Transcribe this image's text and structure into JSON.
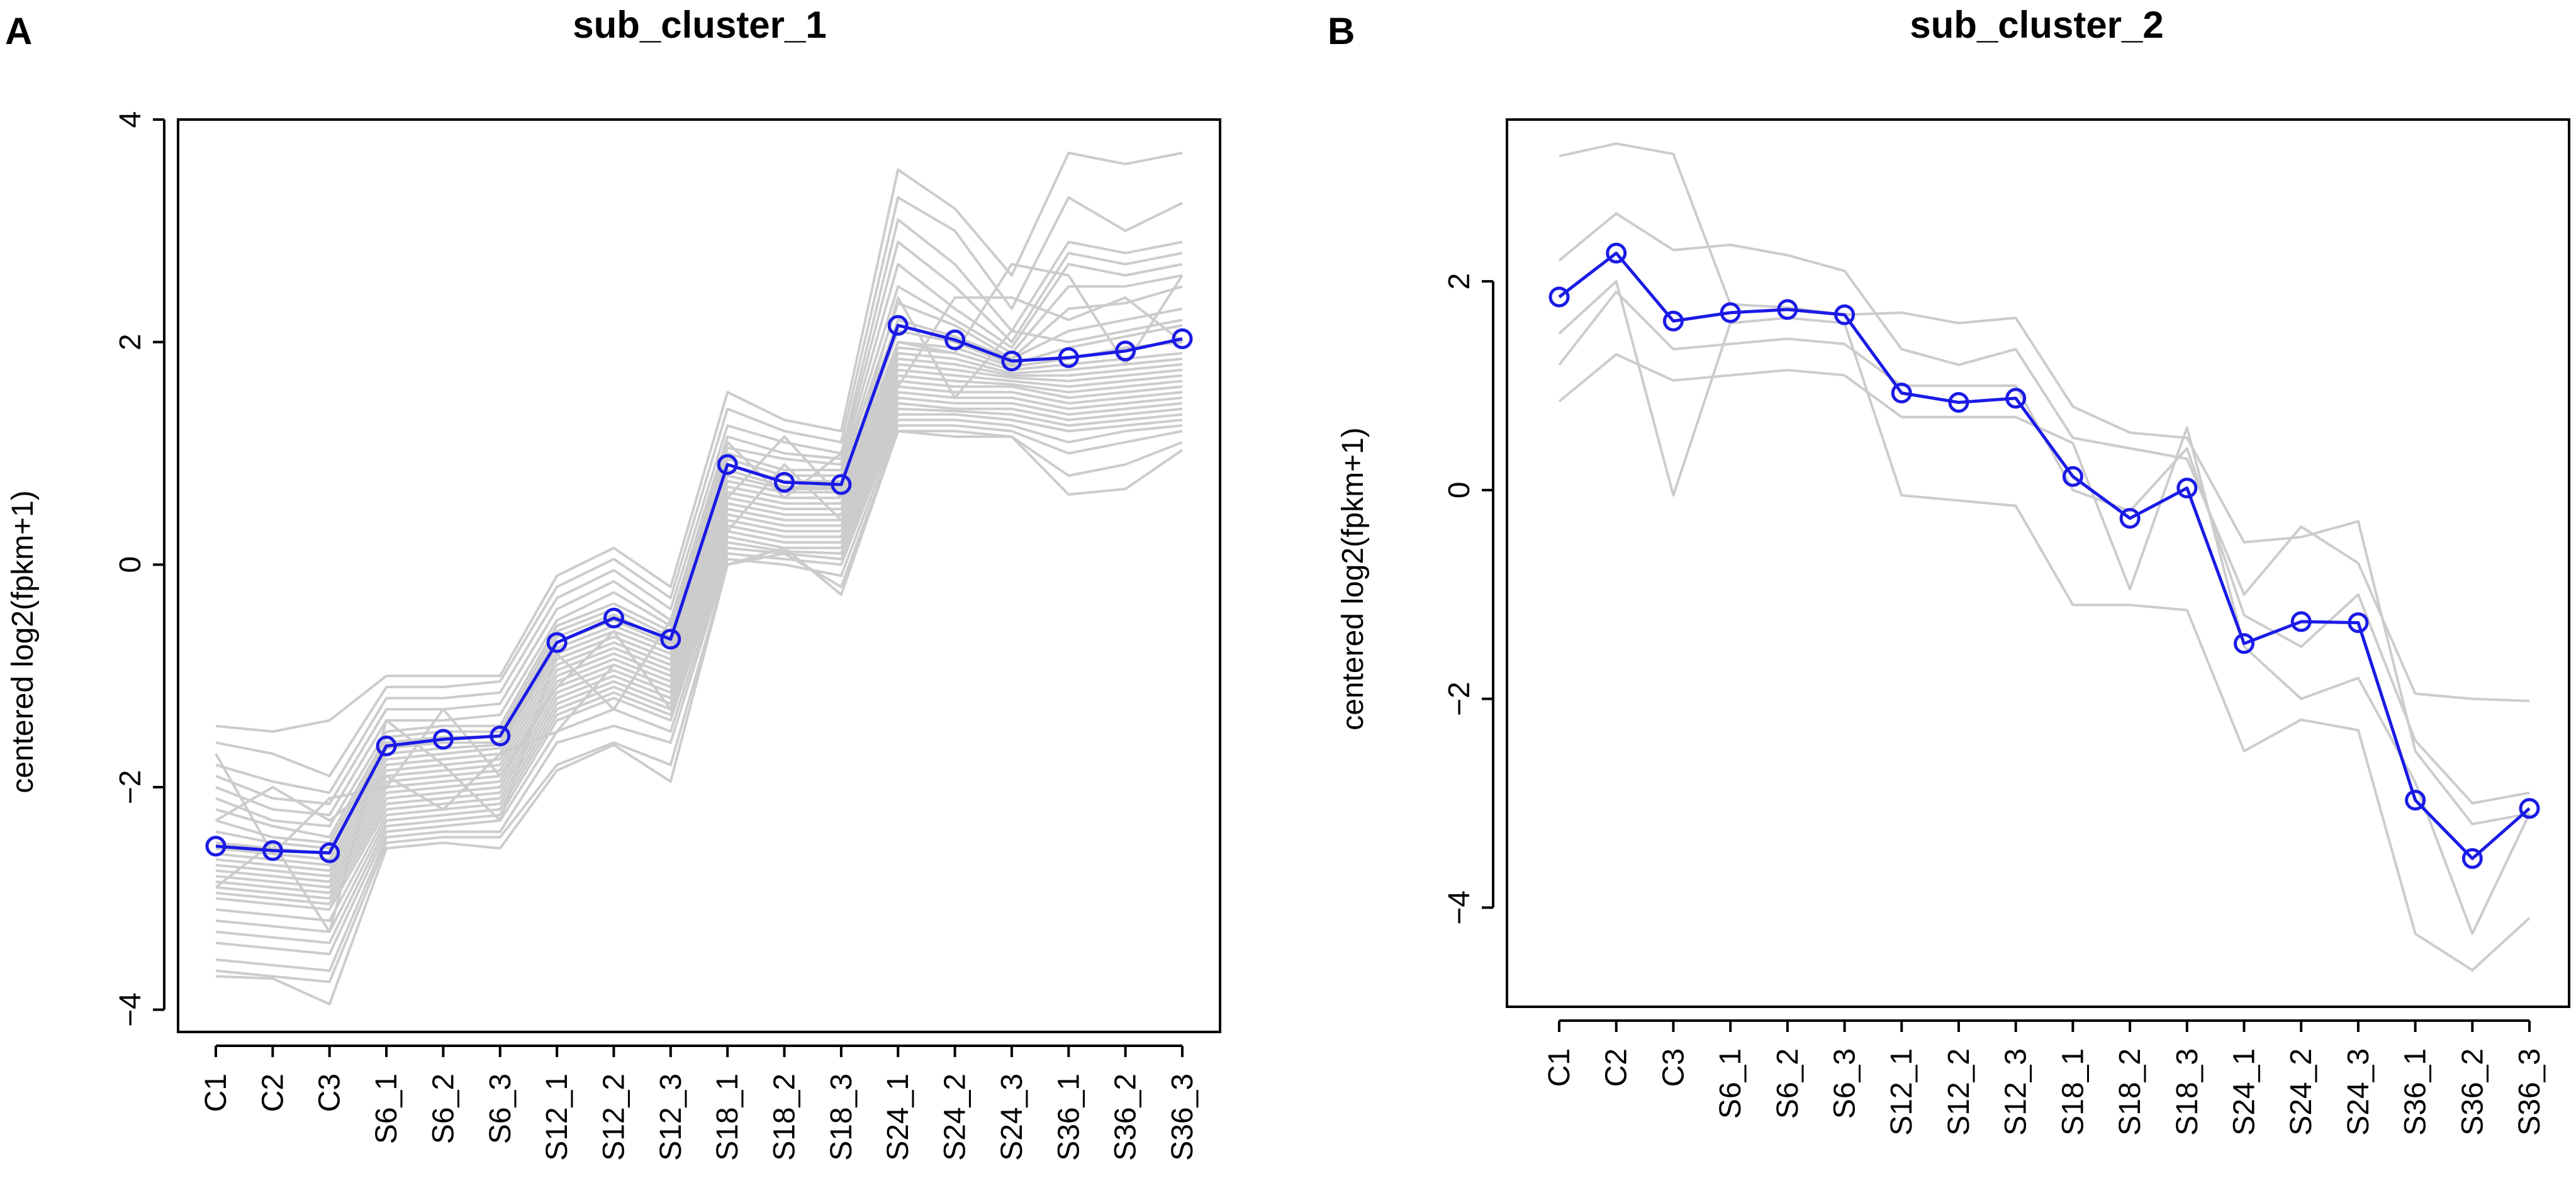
{
  "chart_data": [
    {
      "type": "line",
      "panel": "A",
      "title": "sub_cluster_1",
      "xlabel": "",
      "ylabel": "centered log2(fpkm+1)",
      "categories": [
        "C1",
        "C2",
        "C3",
        "S6_1",
        "S6_2",
        "S6_3",
        "S12_1",
        "S12_2",
        "S12_3",
        "S18_1",
        "S18_2",
        "S18_3",
        "S24_1",
        "S24_2",
        "S24_3",
        "S36_1",
        "S36_2",
        "S36_3"
      ],
      "ylim": [
        -4.2,
        4.0
      ],
      "yticks": [
        -4,
        -2,
        0,
        2,
        4
      ],
      "ytick_labels": [
        "−4",
        "−2",
        "0",
        "2",
        "4"
      ],
      "mean_color": "#1a1ae6",
      "background_color": "#cccccc",
      "mean": {
        "name": "mean",
        "values": [
          -2.53,
          -2.57,
          -2.59,
          -1.63,
          -1.57,
          -1.54,
          -0.7,
          -0.48,
          -0.67,
          0.9,
          0.74,
          0.72,
          2.15,
          2.02,
          1.83,
          1.86,
          1.92,
          2.03
        ]
      },
      "background_series": [
        {
          "values": [
            -1.45,
            -1.5,
            -1.4,
            -1.0,
            -1.0,
            -1.0,
            -0.1,
            0.15,
            -0.2,
            1.55,
            1.3,
            1.2,
            3.55,
            3.2,
            2.6,
            3.7,
            3.6,
            3.7
          ]
        },
        {
          "values": [
            -1.6,
            -1.7,
            -1.9,
            -1.1,
            -1.1,
            -1.05,
            -0.2,
            0.05,
            -0.3,
            1.4,
            1.2,
            1.1,
            3.3,
            3.0,
            2.3,
            3.3,
            3.0,
            3.25
          ]
        },
        {
          "values": [
            -1.8,
            -1.95,
            -2.05,
            -1.2,
            -1.2,
            -1.15,
            -0.3,
            -0.05,
            -0.4,
            1.25,
            1.1,
            1.0,
            3.1,
            2.7,
            2.1,
            2.9,
            2.8,
            2.9
          ]
        },
        {
          "values": [
            -1.9,
            -2.1,
            -2.15,
            -1.3,
            -1.3,
            -1.25,
            -0.4,
            -0.15,
            -0.5,
            1.15,
            1.0,
            0.95,
            2.9,
            2.5,
            2.0,
            2.8,
            2.7,
            2.8
          ]
        },
        {
          "values": [
            -2.0,
            -2.2,
            -2.25,
            -1.4,
            -1.4,
            -1.35,
            -0.5,
            -0.25,
            -0.55,
            1.05,
            0.95,
            0.9,
            2.7,
            2.3,
            1.95,
            2.7,
            2.6,
            2.7
          ]
        },
        {
          "values": [
            -2.1,
            -2.3,
            -2.35,
            -1.5,
            -1.45,
            -1.45,
            -0.55,
            -0.35,
            -0.6,
            1.0,
            0.85,
            0.85,
            2.5,
            2.2,
            1.9,
            2.5,
            2.5,
            2.6
          ]
        },
        {
          "values": [
            -2.2,
            -2.35,
            -2.45,
            -1.55,
            -1.5,
            -1.5,
            -0.6,
            -0.4,
            -0.65,
            0.95,
            0.8,
            0.8,
            2.35,
            2.15,
            1.85,
            2.3,
            2.35,
            2.5
          ]
        },
        {
          "values": [
            -2.3,
            -2.45,
            -2.5,
            -1.6,
            -1.55,
            -1.55,
            -0.65,
            -0.45,
            -0.7,
            0.9,
            0.75,
            0.75,
            2.2,
            2.05,
            1.85,
            2.1,
            2.2,
            2.3
          ]
        },
        {
          "values": [
            -2.4,
            -2.5,
            -2.55,
            -1.65,
            -1.6,
            -1.6,
            -0.7,
            -0.5,
            -0.72,
            0.85,
            0.7,
            0.7,
            2.1,
            2.0,
            1.8,
            1.95,
            2.05,
            2.15
          ]
        },
        {
          "values": [
            -2.5,
            -2.55,
            -2.6,
            -1.7,
            -1.65,
            -1.62,
            -0.75,
            -0.55,
            -0.75,
            0.8,
            0.68,
            0.68,
            2.0,
            1.95,
            1.78,
            1.85,
            1.95,
            2.0
          ]
        },
        {
          "values": [
            -2.55,
            -2.6,
            -2.65,
            -1.75,
            -1.7,
            -1.65,
            -0.8,
            -0.6,
            -0.8,
            0.75,
            0.65,
            0.65,
            1.95,
            1.9,
            1.75,
            1.8,
            1.85,
            1.9
          ]
        },
        {
          "values": [
            -2.6,
            -2.65,
            -2.7,
            -1.8,
            -1.75,
            -1.7,
            -0.85,
            -0.65,
            -0.85,
            0.7,
            0.6,
            0.6,
            1.9,
            1.85,
            1.72,
            1.75,
            1.8,
            1.85
          ]
        },
        {
          "values": [
            -2.65,
            -2.7,
            -2.75,
            -1.85,
            -1.8,
            -1.75,
            -0.9,
            -0.7,
            -0.9,
            0.65,
            0.55,
            0.55,
            1.85,
            1.8,
            1.7,
            1.7,
            1.75,
            1.8
          ]
        },
        {
          "values": [
            -2.7,
            -2.75,
            -2.8,
            -1.9,
            -1.85,
            -1.8,
            -0.95,
            -0.75,
            -0.95,
            0.6,
            0.5,
            0.5,
            1.8,
            1.75,
            1.68,
            1.65,
            1.7,
            1.75
          ]
        },
        {
          "values": [
            -2.75,
            -2.8,
            -2.85,
            -1.95,
            -1.9,
            -1.85,
            -1.0,
            -0.8,
            -1.0,
            0.55,
            0.45,
            0.45,
            1.75,
            1.7,
            1.65,
            1.6,
            1.65,
            1.7
          ]
        },
        {
          "values": [
            -2.8,
            -2.85,
            -2.9,
            -2.0,
            -1.95,
            -1.9,
            -1.05,
            -0.85,
            -1.05,
            0.5,
            0.4,
            0.4,
            1.7,
            1.65,
            1.62,
            1.55,
            1.6,
            1.65
          ]
        },
        {
          "values": [
            -2.85,
            -2.9,
            -2.95,
            -2.05,
            -2.0,
            -1.95,
            -1.1,
            -0.9,
            -1.1,
            0.45,
            0.35,
            0.35,
            1.65,
            1.6,
            1.6,
            1.5,
            1.55,
            1.6
          ]
        },
        {
          "values": [
            -2.9,
            -2.95,
            -3.0,
            -2.1,
            -2.05,
            -2.0,
            -1.15,
            -0.95,
            -1.15,
            0.4,
            0.3,
            0.3,
            1.6,
            1.55,
            1.55,
            1.45,
            1.5,
            1.55
          ]
        },
        {
          "values": [
            -2.95,
            -3.0,
            -3.05,
            -2.15,
            -2.1,
            -2.05,
            -1.2,
            -1.0,
            -1.2,
            0.35,
            0.25,
            0.25,
            1.55,
            1.5,
            1.5,
            1.4,
            1.45,
            1.5
          ]
        },
        {
          "values": [
            -3.0,
            -3.05,
            -3.1,
            -2.2,
            -2.15,
            -2.1,
            -1.25,
            -1.05,
            -1.25,
            0.3,
            0.2,
            0.2,
            1.5,
            1.45,
            1.45,
            1.35,
            1.4,
            1.45
          ]
        },
        {
          "values": [
            -3.1,
            -3.15,
            -3.2,
            -2.25,
            -2.2,
            -2.15,
            -1.3,
            -1.1,
            -1.3,
            0.25,
            0.15,
            0.15,
            1.45,
            1.4,
            1.4,
            1.3,
            1.35,
            1.4
          ]
        },
        {
          "values": [
            -3.2,
            -3.25,
            -3.3,
            -2.3,
            -2.25,
            -2.2,
            -1.35,
            -1.15,
            -1.35,
            0.2,
            0.12,
            0.1,
            1.4,
            1.38,
            1.35,
            1.25,
            1.3,
            1.35
          ]
        },
        {
          "values": [
            -3.3,
            -3.35,
            -3.4,
            -2.35,
            -2.3,
            -2.25,
            -1.4,
            -1.2,
            -1.4,
            0.15,
            0.1,
            0.05,
            1.35,
            1.35,
            1.3,
            1.2,
            1.25,
            1.3
          ]
        },
        {
          "values": [
            -3.4,
            -3.45,
            -3.5,
            -2.4,
            -2.35,
            -2.3,
            -1.5,
            -1.3,
            -1.5,
            0.1,
            0.05,
            0.0,
            1.3,
            1.3,
            1.25,
            1.1,
            1.2,
            1.25
          ]
        },
        {
          "values": [
            -3.55,
            -3.6,
            -3.65,
            -2.45,
            -2.4,
            -2.4,
            -1.6,
            -1.45,
            -1.6,
            0.05,
            0.0,
            -0.1,
            1.25,
            1.25,
            1.2,
            1.0,
            1.1,
            1.2
          ]
        },
        {
          "values": [
            -3.65,
            -3.7,
            -3.75,
            -2.5,
            -2.45,
            -2.45,
            -1.8,
            -1.6,
            -1.8,
            0.0,
            0.1,
            -0.2,
            1.2,
            1.2,
            1.15,
            0.8,
            0.9,
            1.1
          ]
        },
        {
          "values": [
            -3.7,
            -3.72,
            -3.95,
            -2.55,
            -2.5,
            -2.55,
            -1.85,
            -1.62,
            -1.95,
            0.0,
            0.15,
            -0.27,
            1.2,
            1.15,
            1.15,
            0.63,
            0.68,
            1.03
          ]
        },
        {
          "values": [
            -2.3,
            -2.0,
            -2.3,
            -1.9,
            -2.2,
            -1.7,
            -1.5,
            -0.9,
            -1.1,
            0.6,
            1.15,
            0.6,
            2.4,
            1.5,
            2.1,
            2.0,
            2.1,
            2.2
          ]
        },
        {
          "values": [
            -2.9,
            -2.5,
            -3.3,
            -1.4,
            -1.8,
            -2.3,
            -0.8,
            -1.3,
            -0.5,
            1.1,
            0.6,
            1.0,
            1.6,
            2.4,
            2.4,
            2.2,
            2.4,
            2.0
          ]
        },
        {
          "values": [
            -1.7,
            -2.6,
            -2.1,
            -2.0,
            -1.3,
            -1.9,
            -1.1,
            -0.6,
            -1.3,
            0.3,
            0.9,
            0.4,
            2.0,
            1.9,
            2.7,
            2.6,
            1.8,
            2.6
          ]
        }
      ]
    },
    {
      "type": "line",
      "panel": "B",
      "title": "sub_cluster_2",
      "xlabel": "",
      "ylabel": "centered log2(fpkm+1)",
      "categories": [
        "C1",
        "C2",
        "C3",
        "S6_1",
        "S6_2",
        "S6_3",
        "S12_1",
        "S12_2",
        "S12_3",
        "S18_1",
        "S18_2",
        "S18_3",
        "S24_1",
        "S24_2",
        "S24_3",
        "S36_1",
        "S36_2",
        "S36_3"
      ],
      "ylim": [
        -4.95,
        3.55
      ],
      "yticks": [
        -4,
        -2,
        0,
        2
      ],
      "ytick_labels": [
        "−4",
        "−2",
        "0",
        "2"
      ],
      "mean_color": "#1a1ae6",
      "background_color": "#cccccc",
      "mean": {
        "name": "mean",
        "values": [
          1.85,
          2.27,
          1.62,
          1.7,
          1.73,
          1.68,
          0.93,
          0.84,
          0.88,
          0.13,
          -0.27,
          0.02,
          -1.47,
          -1.26,
          -1.27,
          -2.97,
          -3.53,
          -3.05
        ]
      },
      "background_series": [
        {
          "values": [
            3.2,
            3.32,
            3.22,
            1.78,
            1.75,
            1.68,
            1.7,
            1.6,
            1.65,
            0.8,
            0.55,
            0.5,
            -0.5,
            -0.45,
            -0.3,
            -2.5,
            -3.2,
            -3.1
          ]
        },
        {
          "values": [
            2.2,
            2.65,
            2.3,
            2.35,
            2.25,
            2.1,
            1.35,
            1.2,
            1.35,
            0.5,
            0.4,
            0.3,
            -1.0,
            -0.35,
            -0.7,
            -1.95,
            -2.0,
            -2.02
          ]
        },
        {
          "values": [
            1.5,
            2.0,
            -0.05,
            1.6,
            1.65,
            1.6,
            -0.05,
            -0.1,
            -0.15,
            -1.1,
            -1.1,
            -1.15,
            -2.5,
            -2.2,
            -2.3,
            -4.25,
            -4.6,
            -4.1
          ]
        },
        {
          "values": [
            0.85,
            1.3,
            1.05,
            1.1,
            1.15,
            1.1,
            0.7,
            0.7,
            0.7,
            0.45,
            -0.95,
            0.6,
            -1.5,
            -2.0,
            -1.8,
            -2.8,
            -4.25,
            -3.1
          ]
        },
        {
          "values": [
            1.2,
            1.9,
            1.35,
            1.4,
            1.45,
            1.4,
            1.0,
            1.0,
            1.0,
            0.0,
            -0.2,
            0.4,
            -1.2,
            -1.5,
            -1.0,
            -2.4,
            -3.0,
            -2.9
          ]
        }
      ]
    }
  ]
}
